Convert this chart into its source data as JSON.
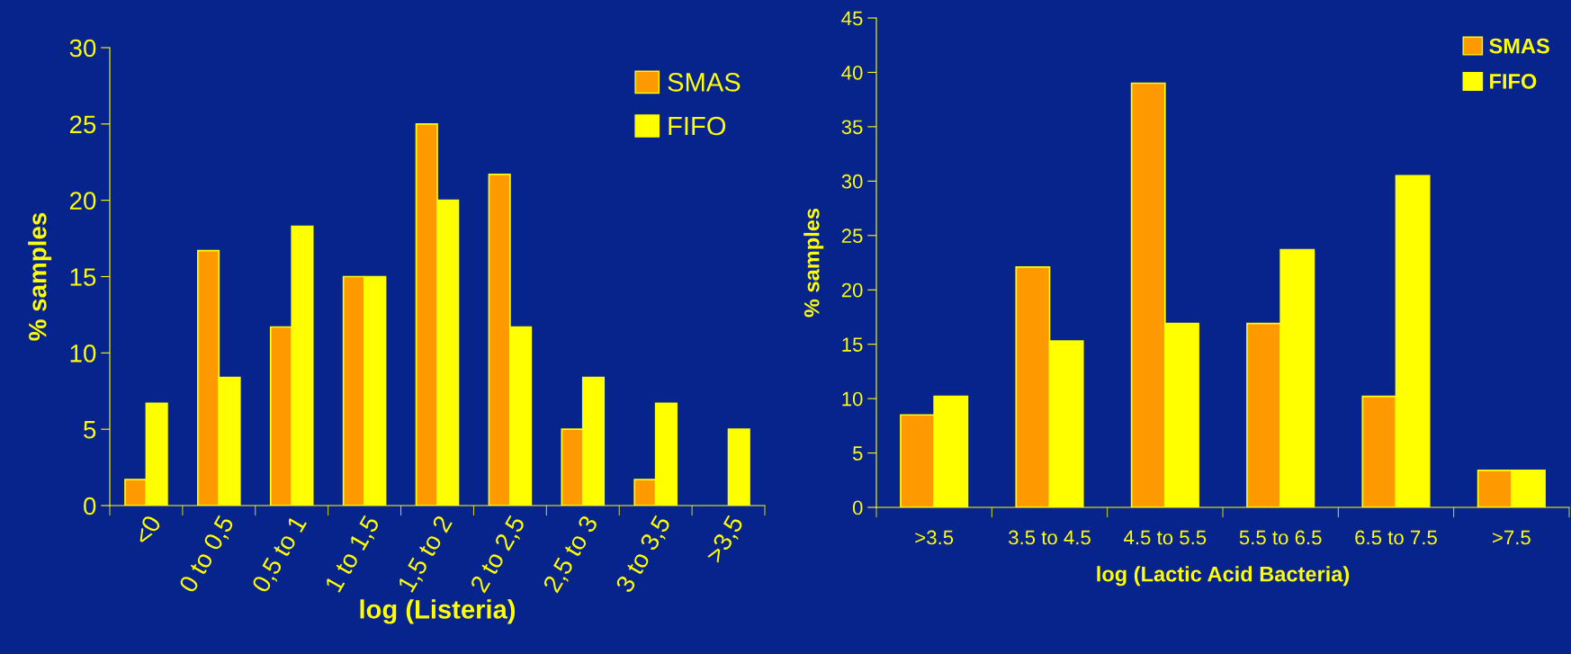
{
  "chart_data": [
    {
      "type": "bar",
      "xlabel": "log (Listeria)",
      "ylabel": "% samples",
      "categories": [
        "<0",
        "0 to 0,5",
        "0,5 to 1",
        "1 to 1,5",
        "1,5 to 2",
        "2 to 2,5",
        "2,5 to 3",
        "3 to 3,5",
        ">3,5"
      ],
      "series": [
        {
          "name": "SMAS",
          "color": "#ff9900",
          "values": [
            1.7,
            16.7,
            11.7,
            15,
            25,
            21.7,
            5,
            1.7,
            null
          ]
        },
        {
          "name": "FIFO",
          "color": "#ffff00",
          "values": [
            6.7,
            8.4,
            18.3,
            15,
            20,
            11.7,
            8.4,
            6.7,
            5
          ]
        }
      ],
      "ylim": [
        0,
        30
      ],
      "yticks": [
        0,
        5,
        10,
        15,
        20,
        25,
        30
      ],
      "grid": false,
      "legend": "top right"
    },
    {
      "type": "bar",
      "xlabel": "log (Lactic Acid Bacteria)",
      "ylabel": "% samples",
      "categories": [
        ">3.5",
        "3.5 to 4.5",
        "4.5 to 5.5",
        "5.5 to 6.5",
        "6.5 to 7.5",
        ">7.5"
      ],
      "series": [
        {
          "name": "SMAS",
          "color": "#ff9900",
          "values": [
            8.5,
            22.1,
            39,
            16.9,
            10.2,
            3.4
          ]
        },
        {
          "name": "FIFO",
          "color": "#ffff00",
          "values": [
            10.2,
            15.3,
            16.9,
            23.7,
            30.5,
            3.4
          ]
        }
      ],
      "ylim": [
        0,
        45
      ],
      "yticks": [
        0,
        5,
        10,
        15,
        20,
        25,
        30,
        35,
        40,
        45
      ],
      "grid": false,
      "legend": "top right"
    }
  ]
}
